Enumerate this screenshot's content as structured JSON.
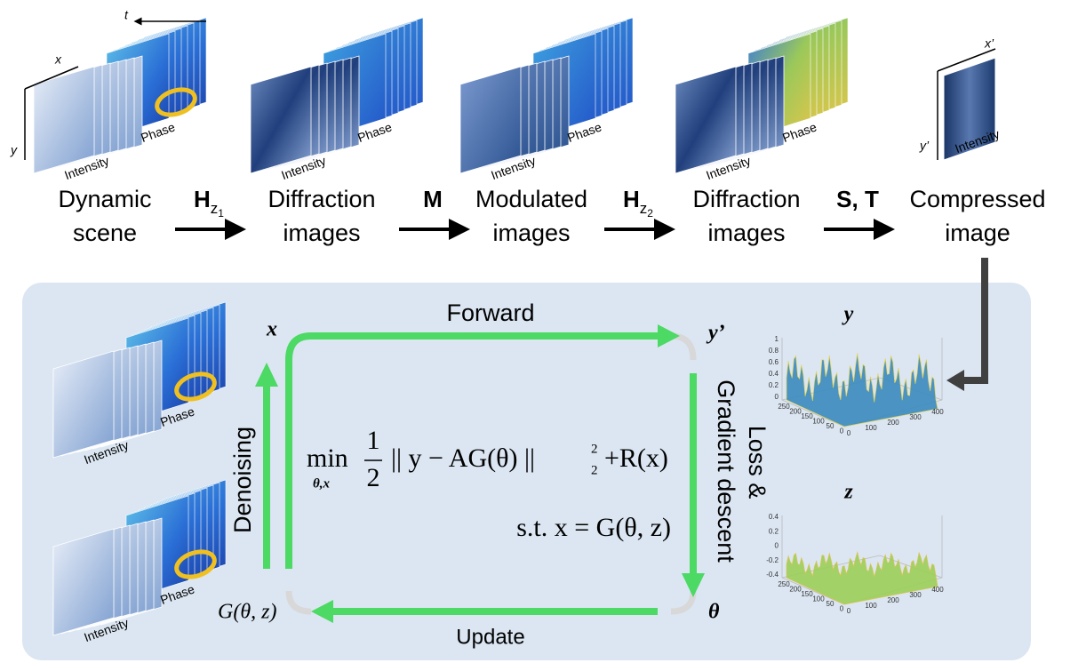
{
  "forward_model": {
    "stages": [
      {
        "label_lines": [
          "Dynamic",
          "scene"
        ],
        "image_labels": [
          "Intensity",
          "Phase"
        ],
        "axes": [
          "t",
          "x",
          "y"
        ]
      },
      {
        "label_lines": [
          "Diffraction",
          "images"
        ],
        "image_labels": [
          "Intensity",
          "Phase"
        ]
      },
      {
        "label_lines": [
          "Modulated",
          "images"
        ],
        "image_labels": [
          "Intensity",
          "Phase"
        ]
      },
      {
        "label_lines": [
          "Diffraction",
          "images"
        ],
        "image_labels": [
          "Intensity",
          "Phase"
        ]
      },
      {
        "label_lines": [
          "Compressed",
          "image"
        ],
        "image_labels": [
          "Intensity"
        ],
        "axes": [
          "x’",
          "y’"
        ]
      }
    ],
    "operators": [
      {
        "symbol": "H",
        "subscript": "z",
        "index": "1"
      },
      {
        "symbol": "M"
      },
      {
        "symbol": "H",
        "subscript": "z",
        "index": "2"
      },
      {
        "symbol": "S, T"
      }
    ]
  },
  "reconstruction": {
    "left_stacks": [
      {
        "image_labels": [
          "Intensity",
          "Phase"
        ]
      },
      {
        "image_labels": [
          "Intensity",
          "Phase"
        ]
      }
    ],
    "loop": {
      "forward": "Forward",
      "update": "Update",
      "denoising": "Denoising",
      "loss_lines": [
        "Loss &",
        "Gradient descent"
      ],
      "nodes": {
        "x": "x",
        "y_prime": "y’",
        "theta": "θ",
        "generator": "G(θ, z)"
      }
    },
    "objective": {
      "min": "min",
      "min_sub": "θ,x",
      "numerator": "1",
      "denominator": "2",
      "norm": "|| y − AG(θ) ||",
      "norm_sup": "2",
      "norm_sub": "2",
      "regularizer": "+R(x)",
      "constraint": "s.t. x = G(θ, z)"
    },
    "plots": [
      {
        "title": "y",
        "zticks": [
          1,
          0.8,
          0.6,
          0.4,
          0.2,
          0
        ],
        "xticks": [
          0,
          100,
          200,
          300,
          400
        ],
        "yticks": [
          250,
          200,
          150,
          100,
          50,
          0
        ]
      },
      {
        "title": "z",
        "zticks": [
          0.4,
          0.2,
          0,
          -0.2,
          -0.4
        ],
        "xticks": [
          0,
          100,
          200,
          300,
          400
        ],
        "yticks": [
          250,
          200,
          150,
          100,
          50,
          0
        ]
      }
    ]
  }
}
